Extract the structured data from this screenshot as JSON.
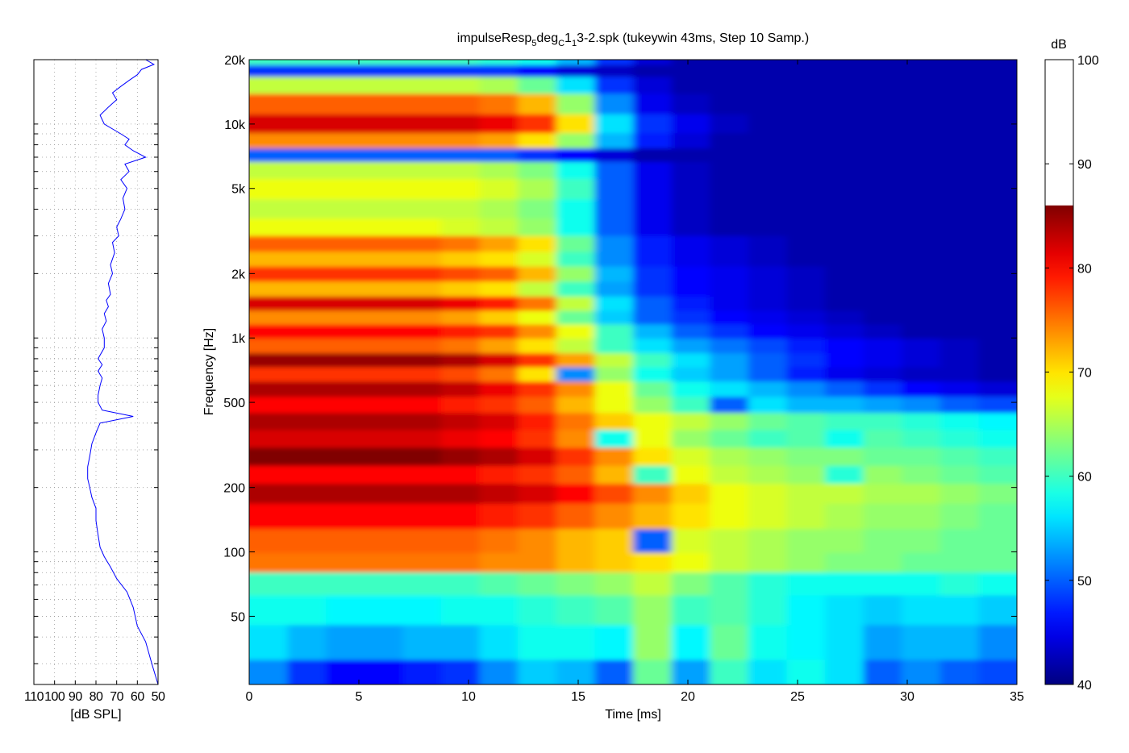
{
  "chart_data": [
    {
      "type": "heatmap",
      "title_parts": [
        "impulseResp",
        "5",
        "deg",
        "C",
        "1",
        "1",
        "3-2.spk (tukeywin 43ms, Step 10 Samp.)"
      ],
      "xlabel": "Time [ms]",
      "ylabel": "Frequency [Hz]",
      "xlim": [
        0,
        35
      ],
      "ylim": [
        24,
        20000
      ],
      "yscale": "log",
      "x_ticks": [
        0,
        5,
        10,
        15,
        20,
        25,
        30,
        35
      ],
      "y_ticks": [
        {
          "value": 50,
          "label": "50"
        },
        {
          "value": 100,
          "label": "100"
        },
        {
          "value": 200,
          "label": "200"
        },
        {
          "value": 500,
          "label": "500"
        },
        {
          "value": 1000,
          "label": "1k"
        },
        {
          "value": 2000,
          "label": "2k"
        },
        {
          "value": 5000,
          "label": "5k"
        },
        {
          "value": 10000,
          "label": "10k"
        },
        {
          "value": 20000,
          "label": "20k"
        }
      ],
      "colormap": "jet",
      "color_range": [
        40,
        86
      ],
      "bands": [
        {
          "f": 26,
          "levels": [
            52,
            48,
            46,
            46,
            47,
            48,
            52,
            55,
            54,
            50,
            62,
            53,
            60,
            56,
            58,
            56,
            50,
            52,
            50,
            49
          ]
        },
        {
          "f": 38,
          "levels": [
            56,
            54,
            53,
            53,
            54,
            54,
            56,
            58,
            58,
            57,
            64,
            57,
            62,
            58,
            57,
            56,
            53,
            54,
            54,
            52
          ]
        },
        {
          "f": 55,
          "levels": [
            58,
            58,
            57,
            57,
            57,
            58,
            58,
            59,
            60,
            61,
            64,
            60,
            61,
            59,
            57,
            56,
            55,
            56,
            56,
            55
          ]
        },
        {
          "f": 72,
          "levels": [
            60,
            60,
            60,
            60,
            60,
            60,
            61,
            62,
            63,
            64,
            66,
            63,
            61,
            59,
            58,
            58,
            58,
            58,
            59,
            58
          ]
        },
        {
          "f": 90,
          "levels": [
            75,
            75,
            75,
            75,
            75,
            75,
            74,
            74,
            72,
            71,
            70,
            68,
            66,
            65,
            64,
            63,
            63,
            62,
            62,
            62
          ]
        },
        {
          "f": 110,
          "levels": [
            76,
            76,
            76,
            76,
            76,
            76,
            75,
            74,
            72,
            71,
            50,
            67,
            66,
            65,
            64,
            64,
            63,
            63,
            62,
            62
          ]
        },
        {
          "f": 150,
          "levels": [
            80,
            80,
            80,
            80,
            80,
            80,
            79,
            78,
            76,
            74,
            72,
            70,
            68,
            67,
            66,
            65,
            64,
            64,
            63,
            62
          ]
        },
        {
          "f": 190,
          "levels": [
            84,
            84,
            84,
            84,
            84,
            84,
            83,
            82,
            80,
            77,
            74,
            71,
            68,
            67,
            66,
            66,
            65,
            65,
            64,
            63
          ]
        },
        {
          "f": 230,
          "levels": [
            80,
            80,
            80,
            80,
            80,
            80,
            79,
            78,
            76,
            72,
            60,
            68,
            66,
            65,
            64,
            59,
            64,
            63,
            62,
            61
          ]
        },
        {
          "f": 280,
          "levels": [
            86,
            86,
            86,
            86,
            86,
            85,
            84,
            82,
            78,
            74,
            70,
            67,
            65,
            64,
            63,
            63,
            62,
            62,
            61,
            60
          ]
        },
        {
          "f": 340,
          "levels": [
            82,
            82,
            82,
            82,
            82,
            81,
            80,
            78,
            74,
            58,
            68,
            64,
            62,
            60,
            61,
            58,
            61,
            60,
            59,
            58
          ]
        },
        {
          "f": 410,
          "levels": [
            84,
            84,
            84,
            84,
            84,
            83,
            82,
            79,
            75,
            71,
            68,
            66,
            64,
            62,
            61,
            60,
            60,
            59,
            58,
            57
          ]
        },
        {
          "f": 490,
          "levels": [
            80,
            80,
            80,
            80,
            80,
            79,
            78,
            76,
            72,
            68,
            64,
            60,
            50,
            56,
            54,
            54,
            53,
            52,
            50,
            49
          ]
        },
        {
          "f": 580,
          "levels": [
            84,
            84,
            84,
            84,
            84,
            83,
            81,
            78,
            74,
            68,
            62,
            58,
            56,
            54,
            52,
            50,
            48,
            46,
            45,
            44
          ]
        },
        {
          "f": 680,
          "levels": [
            78,
            78,
            78,
            78,
            78,
            77,
            75,
            70,
            52,
            64,
            58,
            55,
            53,
            50,
            47,
            45,
            44,
            43,
            43,
            42
          ]
        },
        {
          "f": 790,
          "levels": [
            85,
            85,
            85,
            85,
            85,
            84,
            82,
            78,
            73,
            66,
            60,
            56,
            53,
            50,
            48,
            46,
            45,
            44,
            43,
            42
          ]
        },
        {
          "f": 920,
          "levels": [
            76,
            76,
            76,
            76,
            76,
            75,
            73,
            70,
            66,
            60,
            56,
            53,
            51,
            49,
            47,
            46,
            45,
            44,
            43,
            42
          ]
        },
        {
          "f": 1080,
          "levels": [
            80,
            80,
            80,
            80,
            80,
            79,
            78,
            74,
            68,
            60,
            54,
            50,
            48,
            46,
            45,
            44,
            43,
            42,
            42,
            42
          ]
        },
        {
          "f": 1250,
          "levels": [
            74,
            74,
            74,
            74,
            74,
            73,
            71,
            68,
            62,
            55,
            50,
            48,
            46,
            45,
            44,
            43,
            42,
            42,
            42,
            42
          ]
        },
        {
          "f": 1450,
          "levels": [
            82,
            82,
            82,
            82,
            82,
            81,
            79,
            75,
            66,
            56,
            50,
            47,
            45,
            44,
            43,
            42,
            42,
            42,
            42,
            42
          ]
        },
        {
          "f": 1700,
          "levels": [
            72,
            72,
            72,
            72,
            72,
            71,
            70,
            66,
            60,
            53,
            48,
            46,
            45,
            44,
            43,
            42,
            42,
            42,
            42,
            42
          ]
        },
        {
          "f": 2000,
          "levels": [
            78,
            78,
            78,
            78,
            78,
            77,
            76,
            72,
            64,
            54,
            48,
            46,
            45,
            44,
            43,
            42,
            42,
            42,
            42,
            42
          ]
        },
        {
          "f": 2350,
          "levels": [
            72,
            72,
            72,
            72,
            72,
            71,
            70,
            67,
            60,
            52,
            47,
            45,
            44,
            43,
            42,
            42,
            42,
            42,
            42,
            42
          ]
        },
        {
          "f": 2750,
          "levels": [
            76,
            76,
            76,
            76,
            76,
            75,
            73,
            70,
            62,
            52,
            47,
            45,
            44,
            43,
            42,
            42,
            42,
            42,
            42,
            42
          ]
        },
        {
          "f": 3300,
          "levels": [
            68,
            68,
            68,
            68,
            68,
            67,
            66,
            64,
            58,
            50,
            45,
            43,
            42,
            42,
            42,
            42,
            42,
            42,
            42,
            42
          ]
        },
        {
          "f": 4000,
          "levels": [
            66,
            66,
            66,
            66,
            66,
            66,
            65,
            63,
            58,
            50,
            45,
            43,
            42,
            42,
            42,
            42,
            42,
            42,
            42,
            42
          ]
        },
        {
          "f": 5000,
          "levels": [
            68,
            68,
            68,
            68,
            68,
            68,
            67,
            65,
            60,
            50,
            45,
            43,
            42,
            42,
            42,
            42,
            42,
            42,
            42,
            42
          ]
        },
        {
          "f": 6200,
          "levels": [
            66,
            66,
            66,
            66,
            66,
            66,
            65,
            63,
            58,
            50,
            45,
            43,
            42,
            42,
            42,
            42,
            42,
            42,
            42,
            42
          ]
        },
        {
          "f": 7200,
          "levels": [
            50,
            50,
            50,
            50,
            50,
            50,
            50,
            48,
            46,
            44,
            42,
            42,
            42,
            42,
            42,
            42,
            42,
            42,
            42,
            42
          ]
        },
        {
          "f": 8300,
          "levels": [
            74,
            74,
            74,
            74,
            74,
            74,
            73,
            70,
            64,
            54,
            47,
            44,
            42,
            42,
            42,
            42,
            42,
            42,
            42,
            42
          ]
        },
        {
          "f": 10000,
          "levels": [
            82,
            82,
            82,
            82,
            82,
            82,
            81,
            78,
            70,
            56,
            48,
            45,
            43,
            42,
            42,
            42,
            42,
            42,
            42,
            42
          ]
        },
        {
          "f": 12500,
          "levels": [
            76,
            76,
            76,
            76,
            76,
            76,
            75,
            72,
            64,
            52,
            45,
            43,
            42,
            42,
            42,
            42,
            42,
            42,
            42,
            42
          ]
        },
        {
          "f": 15500,
          "levels": [
            66,
            66,
            66,
            66,
            66,
            66,
            65,
            62,
            56,
            48,
            44,
            42,
            42,
            42,
            42,
            42,
            42,
            42,
            42,
            42
          ]
        },
        {
          "f": 18000,
          "levels": [
            48,
            48,
            48,
            48,
            48,
            48,
            48,
            46,
            44,
            43,
            42,
            42,
            42,
            42,
            42,
            42,
            42,
            42,
            42,
            42
          ]
        },
        {
          "f": 20000,
          "levels": [
            60,
            60,
            60,
            60,
            60,
            60,
            59,
            58,
            54,
            48,
            44,
            42,
            42,
            42,
            42,
            42,
            42,
            42,
            42,
            42
          ]
        }
      ]
    },
    {
      "type": "line",
      "xlabel": "[dB SPL]",
      "xlim": [
        110,
        50
      ],
      "x_ticks": [
        110,
        100,
        90,
        80,
        70,
        60,
        50
      ],
      "x_tick_labels": [
        "110",
        "100",
        "90",
        "80",
        "70",
        "60",
        "50"
      ],
      "yscale": "log",
      "ylim": [
        24,
        20000
      ],
      "series": [
        {
          "color": "#0000ff",
          "f": [
            24,
            30,
            38,
            45,
            55,
            65,
            75,
            85,
            95,
            105,
            120,
            140,
            160,
            180,
            200,
            220,
            250,
            280,
            320,
            360,
            400,
            430,
            460,
            480,
            500,
            540,
            600,
            650,
            700,
            750,
            800,
            900,
            1000,
            1100,
            1200,
            1300,
            1400,
            1500,
            1600,
            1800,
            2000,
            2200,
            2500,
            2800,
            3000,
            3300,
            3600,
            4000,
            4500,
            5000,
            5500,
            6000,
            6500,
            7000,
            7500,
            8000,
            8500,
            9000,
            10000,
            11000,
            12000,
            13000,
            14000,
            15000,
            16000,
            17000,
            18000,
            19000,
            20000
          ],
          "db": [
            50,
            53,
            56,
            60,
            62,
            65,
            70,
            73,
            76,
            78,
            79,
            80,
            80,
            82,
            83,
            84,
            84,
            83,
            82,
            80,
            78,
            62,
            77,
            78,
            79,
            79,
            78,
            77,
            79,
            77,
            79,
            76,
            76,
            77,
            75,
            76,
            74,
            75,
            73,
            74,
            72,
            73,
            71,
            72,
            69,
            70,
            68,
            66,
            67,
            65,
            68,
            64,
            66,
            56,
            62,
            66,
            64,
            68,
            76,
            78,
            74,
            70,
            72,
            68,
            64,
            60,
            58,
            52,
            56
          ]
        }
      ]
    },
    {
      "type": "colorbar",
      "title": "dB",
      "range": [
        40,
        100
      ],
      "ticks": [
        40,
        50,
        60,
        70,
        80,
        90,
        100
      ],
      "data_max": 86
    }
  ]
}
